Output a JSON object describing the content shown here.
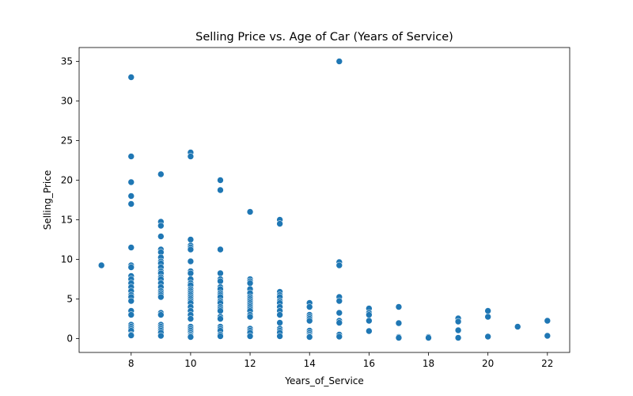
{
  "chart_data": {
    "type": "scatter",
    "title": "Selling Price vs. Age of Car (Years of Service)",
    "xlabel": "Years_of_Service",
    "ylabel": "Selling_Price",
    "xlim": [
      6.25,
      22.75
    ],
    "ylim": [
      -1.75,
      36.75
    ],
    "xticks": [
      8,
      10,
      12,
      14,
      16,
      18,
      20,
      22
    ],
    "yticks": [
      0,
      5,
      10,
      15,
      20,
      25,
      30,
      35
    ],
    "grid": false,
    "legend": "none",
    "color": "#1f77b4",
    "series": [
      {
        "points": [
          [
            7,
            9.25
          ],
          [
            8,
            33.0
          ],
          [
            8,
            23.0
          ],
          [
            8,
            19.75
          ],
          [
            8,
            18.0
          ],
          [
            8,
            17.0
          ],
          [
            8,
            11.5
          ],
          [
            8,
            9.25
          ],
          [
            8,
            9.0
          ],
          [
            8,
            7.9
          ],
          [
            8,
            7.5
          ],
          [
            8,
            7.0
          ],
          [
            8,
            6.5
          ],
          [
            8,
            6.0
          ],
          [
            8,
            5.5
          ],
          [
            8,
            5.25
          ],
          [
            8,
            4.75
          ],
          [
            8,
            3.5
          ],
          [
            8,
            3.0
          ],
          [
            8,
            1.75
          ],
          [
            8,
            1.5
          ],
          [
            8,
            1.25
          ],
          [
            8,
            1.0
          ],
          [
            8,
            0.5
          ],
          [
            8,
            0.4
          ],
          [
            9,
            20.75
          ],
          [
            9,
            14.75
          ],
          [
            9,
            14.25
          ],
          [
            9,
            12.9
          ],
          [
            9,
            11.25
          ],
          [
            9,
            10.9
          ],
          [
            9,
            10.25
          ],
          [
            9,
            9.75
          ],
          [
            9,
            9.5
          ],
          [
            9,
            9.0
          ],
          [
            9,
            8.5
          ],
          [
            9,
            8.25
          ],
          [
            9,
            7.75
          ],
          [
            9,
            7.5
          ],
          [
            9,
            7.0
          ],
          [
            9,
            6.5
          ],
          [
            9,
            6.0
          ],
          [
            9,
            5.75
          ],
          [
            9,
            5.5
          ],
          [
            9,
            5.25
          ],
          [
            9,
            3.25
          ],
          [
            9,
            3.0
          ],
          [
            9,
            1.75
          ],
          [
            9,
            1.5
          ],
          [
            9,
            1.25
          ],
          [
            9,
            1.0
          ],
          [
            9,
            0.75
          ],
          [
            9,
            0.35
          ],
          [
            10,
            23.5
          ],
          [
            10,
            23.0
          ],
          [
            10,
            12.5
          ],
          [
            10,
            11.75
          ],
          [
            10,
            11.5
          ],
          [
            10,
            11.25
          ],
          [
            10,
            9.75
          ],
          [
            10,
            8.5
          ],
          [
            10,
            8.25
          ],
          [
            10,
            7.5
          ],
          [
            10,
            7.0
          ],
          [
            10,
            6.75
          ],
          [
            10,
            6.25
          ],
          [
            10,
            6.0
          ],
          [
            10,
            5.75
          ],
          [
            10,
            5.5
          ],
          [
            10,
            5.25
          ],
          [
            10,
            5.0
          ],
          [
            10,
            4.75
          ],
          [
            10,
            4.5
          ],
          [
            10,
            4.0
          ],
          [
            10,
            3.5
          ],
          [
            10,
            3.0
          ],
          [
            10,
            2.5
          ],
          [
            10,
            1.5
          ],
          [
            10,
            1.25
          ],
          [
            10,
            1.0
          ],
          [
            10,
            0.75
          ],
          [
            10,
            0.5
          ],
          [
            10,
            0.35
          ],
          [
            10,
            0.2
          ],
          [
            11,
            20.0
          ],
          [
            11,
            18.75
          ],
          [
            11,
            11.25
          ],
          [
            11,
            8.25
          ],
          [
            11,
            7.5
          ],
          [
            11,
            7.25
          ],
          [
            11,
            6.5
          ],
          [
            11,
            6.25
          ],
          [
            11,
            5.75
          ],
          [
            11,
            5.5
          ],
          [
            11,
            5.25
          ],
          [
            11,
            4.75
          ],
          [
            11,
            4.5
          ],
          [
            11,
            4.0
          ],
          [
            11,
            3.75
          ],
          [
            11,
            3.5
          ],
          [
            11,
            2.75
          ],
          [
            11,
            2.5
          ],
          [
            11,
            1.5
          ],
          [
            11,
            1.25
          ],
          [
            11,
            1.0
          ],
          [
            11,
            0.5
          ],
          [
            11,
            0.3
          ],
          [
            12,
            16.0
          ],
          [
            12,
            7.5
          ],
          [
            12,
            7.25
          ],
          [
            12,
            7.0
          ],
          [
            12,
            6.25
          ],
          [
            12,
            5.75
          ],
          [
            12,
            5.25
          ],
          [
            12,
            5.0
          ],
          [
            12,
            4.75
          ],
          [
            12,
            4.5
          ],
          [
            12,
            4.25
          ],
          [
            12,
            4.0
          ],
          [
            12,
            3.75
          ],
          [
            12,
            3.5
          ],
          [
            12,
            3.0
          ],
          [
            12,
            2.75
          ],
          [
            12,
            1.25
          ],
          [
            12,
            1.0
          ],
          [
            12,
            0.75
          ],
          [
            12,
            0.3
          ],
          [
            13,
            15.0
          ],
          [
            13,
            14.5
          ],
          [
            13,
            5.9
          ],
          [
            13,
            5.5
          ],
          [
            13,
            5.25
          ],
          [
            13,
            4.75
          ],
          [
            13,
            4.5
          ],
          [
            13,
            4.0
          ],
          [
            13,
            3.5
          ],
          [
            13,
            3.0
          ],
          [
            13,
            2.0
          ],
          [
            13,
            1.25
          ],
          [
            13,
            1.0
          ],
          [
            13,
            0.75
          ],
          [
            13,
            0.3
          ],
          [
            14,
            4.5
          ],
          [
            14,
            4.0
          ],
          [
            14,
            3.0
          ],
          [
            14,
            2.75
          ],
          [
            14,
            2.5
          ],
          [
            14,
            2.25
          ],
          [
            14,
            1.0
          ],
          [
            14,
            0.75
          ],
          [
            14,
            0.5
          ],
          [
            14,
            0.3
          ],
          [
            14,
            0.2
          ],
          [
            15,
            35.0
          ],
          [
            15,
            9.65
          ],
          [
            15,
            9.25
          ],
          [
            15,
            5.25
          ],
          [
            15,
            4.75
          ],
          [
            15,
            3.25
          ],
          [
            15,
            2.25
          ],
          [
            15,
            2.0
          ],
          [
            15,
            0.5
          ],
          [
            15,
            0.25
          ],
          [
            16,
            3.8
          ],
          [
            16,
            3.25
          ],
          [
            16,
            3.0
          ],
          [
            16,
            2.25
          ],
          [
            16,
            0.95
          ],
          [
            17,
            4.0
          ],
          [
            17,
            1.95
          ],
          [
            17,
            0.2
          ],
          [
            17,
            0.1
          ],
          [
            18,
            0.2
          ],
          [
            18,
            0.1
          ],
          [
            19,
            2.55
          ],
          [
            19,
            2.15
          ],
          [
            19,
            1.05
          ],
          [
            19,
            0.1
          ],
          [
            20,
            3.5
          ],
          [
            20,
            2.75
          ],
          [
            20,
            0.25
          ],
          [
            21,
            1.5
          ],
          [
            22,
            2.25
          ],
          [
            22,
            0.35
          ]
        ]
      }
    ]
  }
}
